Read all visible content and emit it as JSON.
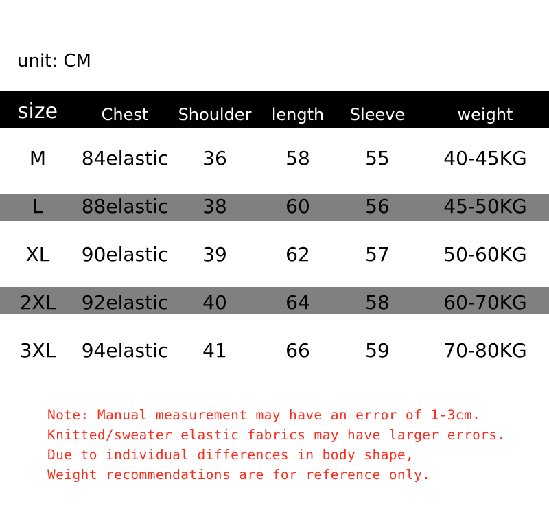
{
  "unit_label": "unit: CM",
  "colors": {
    "header_bg": "#000000",
    "stripe_bg": "#808080",
    "note_text": "#ff2a1a"
  },
  "table": {
    "headers": [
      "size",
      "Chest",
      "Shoulder",
      "length",
      "Sleeve",
      "weight"
    ],
    "rows": [
      [
        "M",
        "84elastic",
        "36",
        "58",
        "55",
        "40-45KG"
      ],
      [
        "L",
        "88elastic",
        "38",
        "60",
        "56",
        "45-50KG"
      ],
      [
        "XL",
        "90elastic",
        "39",
        "62",
        "57",
        "50-60KG"
      ],
      [
        "2XL",
        "92elastic",
        "40",
        "64",
        "58",
        "60-70KG"
      ],
      [
        "3XL",
        "94elastic",
        "41",
        "66",
        "59",
        "70-80KG"
      ]
    ]
  },
  "note": [
    "Note: Manual measurement may have an error of 1-3cm.",
    "Knitted/sweater elastic fabrics may have larger errors.",
    "Due to individual differences in body shape,",
    "Weight recommendations are for reference only."
  ]
}
